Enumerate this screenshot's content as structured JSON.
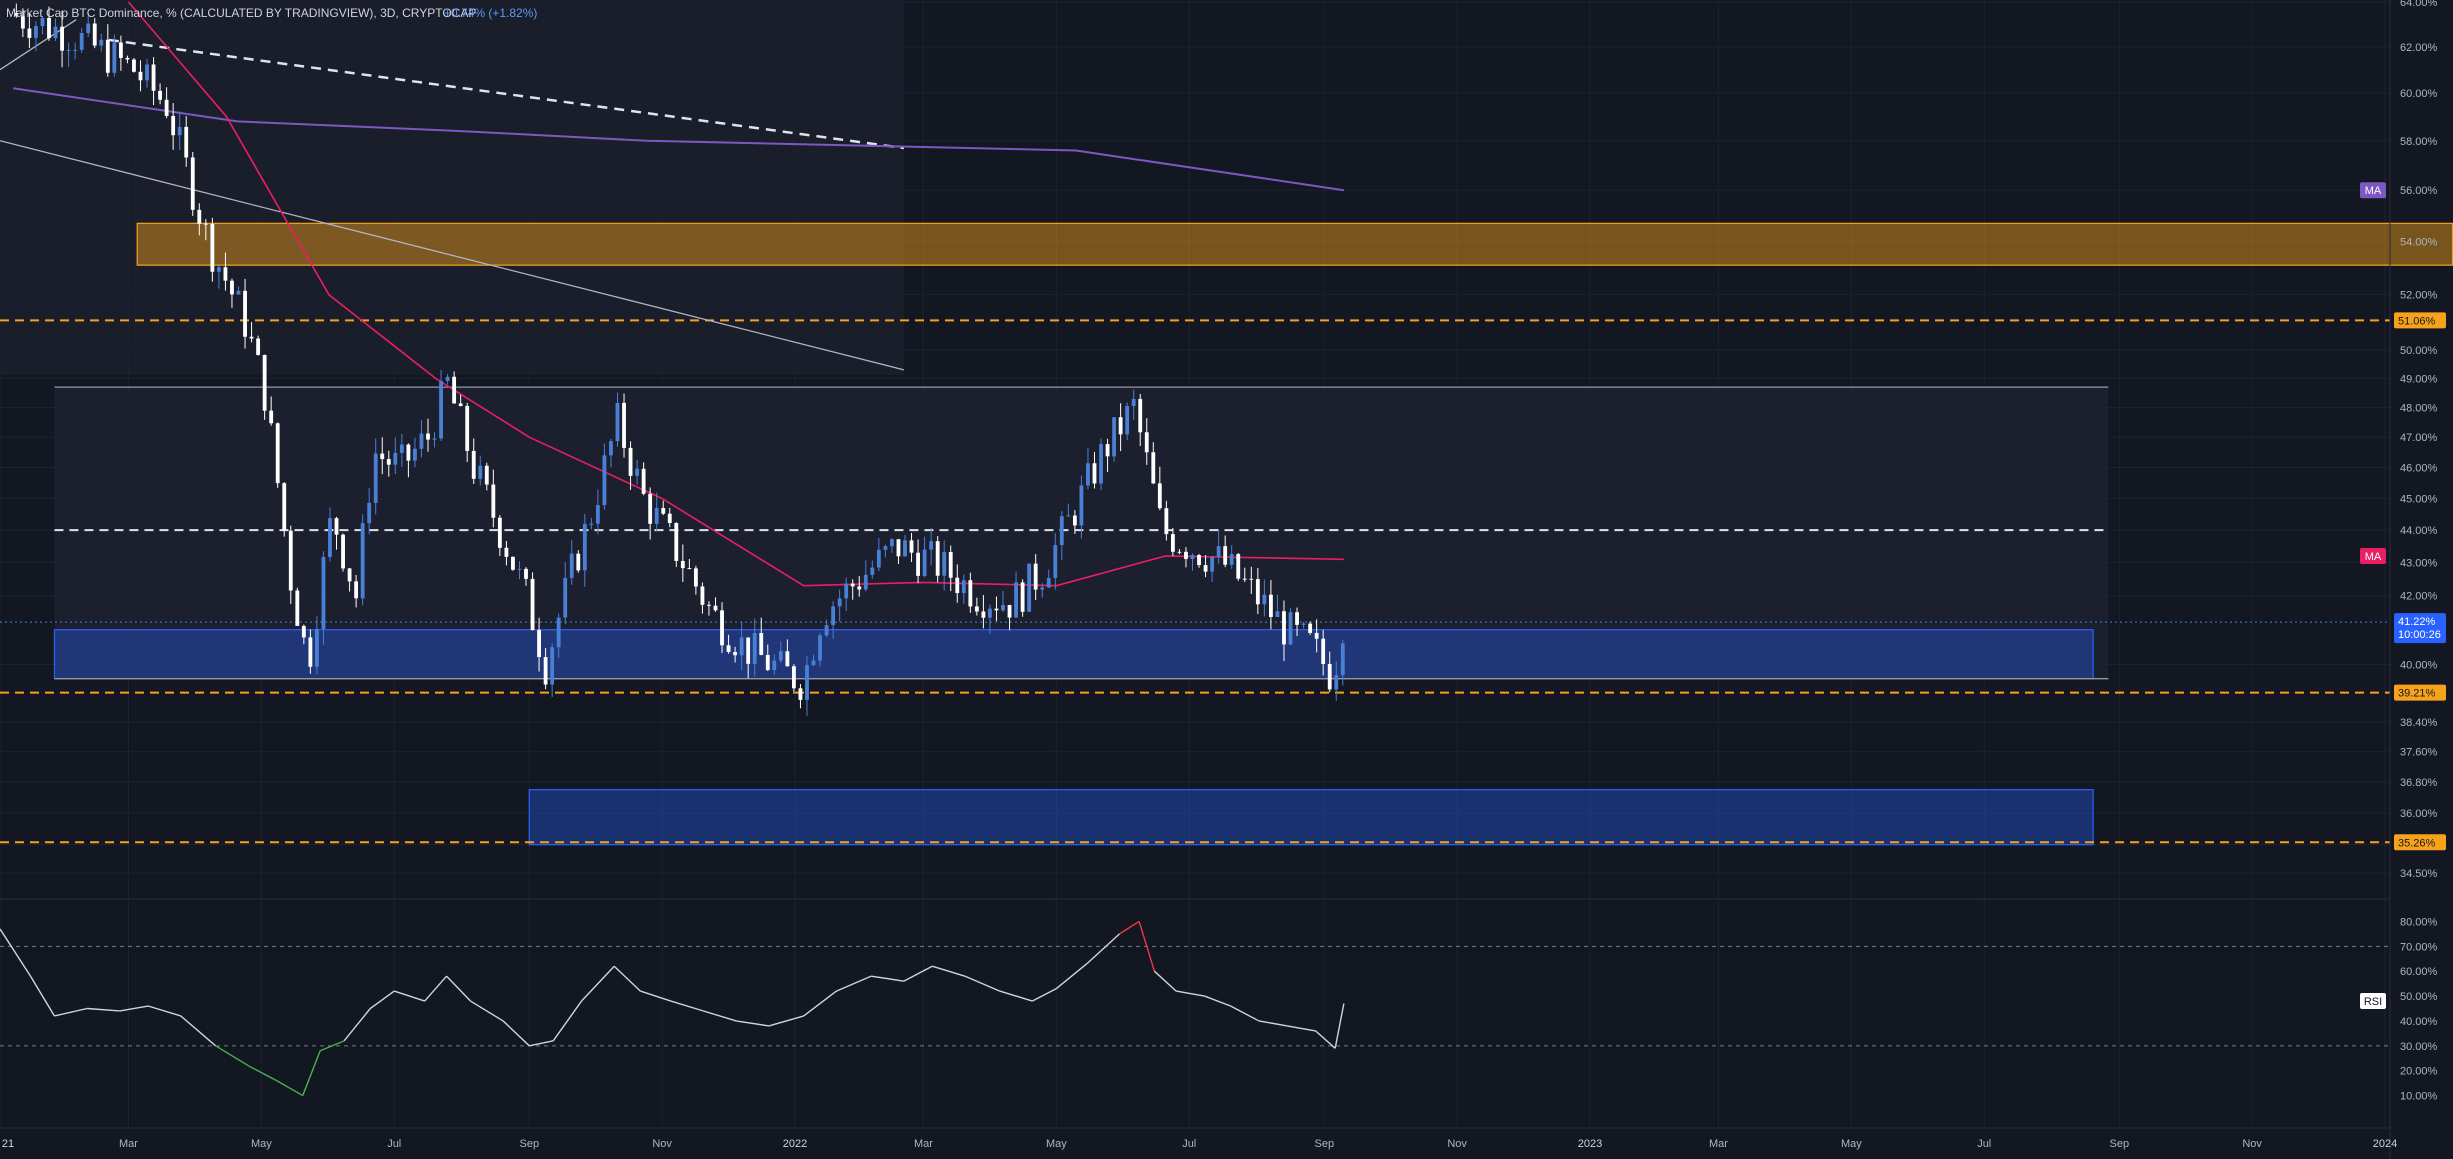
{
  "header": {
    "symbol_text": "Market Cap BTC Dominance, % (CALCULATED BY TRADINGVIEW), 3D, CRYPTOCAP",
    "change": "+0.74% (+1.82%)",
    "change_color": "#5b9cf6"
  },
  "colors": {
    "background": "#131722",
    "grid": "#1e222d",
    "bull": "#4a7fd6",
    "bear": "#ffffff",
    "level": "#f7a21b",
    "supply_zone": "#f7a21b",
    "demand_zone": "#2962ff",
    "ma_long": "#7e57c2",
    "ma_short": "#e91e63",
    "rsi_line": "#d1d4dc",
    "rsi_overbought": "#f23645",
    "rsi_oversold": "#4caf50"
  },
  "price_axis": {
    "ticks": [
      "64.00%",
      "62.00%",
      "60.00%",
      "58.00%",
      "56.00%",
      "54.00%",
      "52.00%",
      "50.00%",
      "49.00%",
      "48.00%",
      "47.00%",
      "46.00%",
      "45.00%",
      "44.00%",
      "43.00%",
      "42.00%",
      "40.00%",
      "38.40%",
      "37.60%",
      "36.80%",
      "36.00%",
      "35.20%",
      "34.50%"
    ]
  },
  "price_labels": {
    "level_upper": "51.06%",
    "level_middle": "39.21%",
    "level_lower": "35.26%",
    "current_price": "41.22%",
    "countdown": "10:00:26",
    "ma_long_tag": "MA",
    "ma_short_tag": "MA"
  },
  "time_axis": {
    "labels": [
      "21",
      "Mar",
      "May",
      "Jul",
      "Sep",
      "Nov",
      "2022",
      "Mar",
      "May",
      "Jul",
      "Sep",
      "Nov",
      "2023",
      "Mar",
      "May",
      "Jul",
      "Sep",
      "Nov",
      "2024"
    ]
  },
  "rsi": {
    "tag": "RSI",
    "ticks": [
      "80.00%",
      "70.00%",
      "60.00%",
      "50.00%",
      "40.00%",
      "30.00%",
      "20.00%",
      "10.00%"
    ]
  },
  "chart_data": {
    "type": "candlestick",
    "title": "Market Cap BTC Dominance, % (CALCULATED BY TRADINGVIEW), 3D, CRYPTOCAP",
    "y_scale": "log",
    "anchors": [
      [
        "2021-01-07",
        63.5
      ],
      [
        "2021-02-05",
        62.5
      ],
      [
        "2021-03-05",
        61.0
      ],
      [
        "2021-03-20",
        59.5
      ],
      [
        "2021-04-08",
        54.0
      ],
      [
        "2021-04-25",
        51.0
      ],
      [
        "2021-05-04",
        48.5
      ],
      [
        "2021-05-16",
        42.5
      ],
      [
        "2021-05-24",
        40.0
      ],
      [
        "2021-06-04",
        44.5
      ],
      [
        "2021-06-15",
        42.0
      ],
      [
        "2021-06-23",
        46.5
      ],
      [
        "2021-07-05",
        46.0
      ],
      [
        "2021-07-18",
        47.0
      ],
      [
        "2021-07-27",
        48.8
      ],
      [
        "2021-08-08",
        46.0
      ],
      [
        "2021-08-20",
        44.0
      ],
      [
        "2021-09-01",
        42.0
      ],
      [
        "2021-09-10",
        40.0
      ],
      [
        "2021-09-21",
        42.5
      ],
      [
        "2021-10-01",
        44.5
      ],
      [
        "2021-10-13",
        47.5
      ],
      [
        "2021-10-25",
        45.0
      ],
      [
        "2021-11-08",
        43.5
      ],
      [
        "2021-11-25",
        41.5
      ],
      [
        "2021-12-10",
        40.5
      ],
      [
        "2021-12-28",
        39.8
      ],
      [
        "2022-01-06",
        39.5
      ],
      [
        "2022-01-15",
        41.5
      ],
      [
        "2022-02-01",
        42.5
      ],
      [
        "2022-02-18",
        43.5
      ],
      [
        "2022-03-08",
        43.0
      ],
      [
        "2022-03-28",
        42.0
      ],
      [
        "2022-04-12",
        41.8
      ],
      [
        "2022-04-27",
        42.8
      ],
      [
        "2022-05-10",
        44.5
      ],
      [
        "2022-05-24",
        46.5
      ],
      [
        "2022-06-07",
        48.0
      ],
      [
        "2022-06-20",
        44.0
      ],
      [
        "2022-07-02",
        43.5
      ],
      [
        "2022-07-18",
        43.0
      ],
      [
        "2022-08-02",
        42.0
      ],
      [
        "2022-08-16",
        41.0
      ],
      [
        "2022-08-28",
        40.5
      ],
      [
        "2022-09-07",
        39.6
      ],
      [
        "2022-09-10",
        41.22
      ]
    ],
    "ma_long": [
      [
        "2021-01-07",
        60.2
      ],
      [
        "2021-04-20",
        58.8
      ],
      [
        "2021-08-01",
        58.4
      ],
      [
        "2021-10-25",
        58.0
      ],
      [
        "2022-02-01",
        57.8
      ],
      [
        "2022-05-10",
        57.6
      ],
      [
        "2022-09-10",
        56.0
      ]
    ],
    "ma_short": [
      [
        "2021-03-01",
        64.0
      ],
      [
        "2021-04-15",
        59.0
      ],
      [
        "2021-06-01",
        52.0
      ],
      [
        "2021-07-20",
        49.0
      ],
      [
        "2021-09-01",
        47.0
      ],
      [
        "2021-11-01",
        45.0
      ],
      [
        "2022-01-05",
        42.3
      ],
      [
        "2022-03-01",
        42.4
      ],
      [
        "2022-05-01",
        42.3
      ],
      [
        "2022-06-20",
        43.2
      ],
      [
        "2022-09-10",
        43.1
      ]
    ],
    "horizontal_levels": [
      51.06,
      39.21,
      35.26
    ],
    "dashed_mid_line": 44.0,
    "range_top": 48.7,
    "range_bottom": 39.6,
    "zones": [
      {
        "kind": "supply",
        "from": "2021-03-05",
        "to": "2024-02-01",
        "low": 53.1,
        "high": 54.7
      },
      {
        "kind": "demand",
        "from": "2021-01-26",
        "to": "2023-08-20",
        "low": 39.6,
        "high": 41.0
      },
      {
        "kind": "demand",
        "from": "2021-09-01",
        "to": "2023-08-20",
        "low": 35.2,
        "high": 36.6
      }
    ],
    "trendlines": [
      {
        "style": "dashed",
        "from": [
          "2021-02-20",
          62.3
        ],
        "to": [
          "2022-02-20",
          57.7
        ]
      },
      {
        "style": "solid",
        "from": [
          "2021-01-01",
          58.0
        ],
        "to": [
          "2022-02-20",
          49.3
        ]
      },
      {
        "style": "solid",
        "from": [
          "2021-01-01",
          61.0
        ],
        "to": [
          "2021-02-05",
          63.2
        ]
      }
    ],
    "rsi_values": [
      [
        "2021-01-01",
        77
      ],
      [
        "2021-01-15",
        58
      ],
      [
        "2021-01-26",
        42
      ],
      [
        "2021-02-10",
        45
      ],
      [
        "2021-02-25",
        44
      ],
      [
        "2021-03-10",
        46
      ],
      [
        "2021-03-25",
        42
      ],
      [
        "2021-04-10",
        30
      ],
      [
        "2021-04-25",
        22
      ],
      [
        "2021-05-08",
        16
      ],
      [
        "2021-05-20",
        10
      ],
      [
        "2021-05-28",
        28
      ],
      [
        "2021-06-08",
        32
      ],
      [
        "2021-06-20",
        45
      ],
      [
        "2021-07-01",
        52
      ],
      [
        "2021-07-15",
        48
      ],
      [
        "2021-07-25",
        58
      ],
      [
        "2021-08-05",
        48
      ],
      [
        "2021-08-20",
        40
      ],
      [
        "2021-09-01",
        30
      ],
      [
        "2021-09-12",
        32
      ],
      [
        "2021-09-25",
        48
      ],
      [
        "2021-10-10",
        62
      ],
      [
        "2021-10-22",
        52
      ],
      [
        "2021-11-05",
        48
      ],
      [
        "2021-11-20",
        44
      ],
      [
        "2021-12-05",
        40
      ],
      [
        "2021-12-20",
        38
      ],
      [
        "2022-01-05",
        42
      ],
      [
        "2022-01-20",
        52
      ],
      [
        "2022-02-05",
        58
      ],
      [
        "2022-02-20",
        56
      ],
      [
        "2022-03-05",
        62
      ],
      [
        "2022-03-20",
        58
      ],
      [
        "2022-04-05",
        52
      ],
      [
        "2022-04-20",
        48
      ],
      [
        "2022-05-01",
        53
      ],
      [
        "2022-05-15",
        63
      ],
      [
        "2022-05-30",
        75
      ],
      [
        "2022-06-08",
        80
      ],
      [
        "2022-06-15",
        60
      ],
      [
        "2022-06-25",
        52
      ],
      [
        "2022-07-08",
        50
      ],
      [
        "2022-07-20",
        46
      ],
      [
        "2022-08-02",
        40
      ],
      [
        "2022-08-15",
        38
      ],
      [
        "2022-08-28",
        36
      ],
      [
        "2022-09-06",
        29
      ],
      [
        "2022-09-10",
        47
      ]
    ],
    "rsi_levels": [
      70,
      30
    ]
  }
}
